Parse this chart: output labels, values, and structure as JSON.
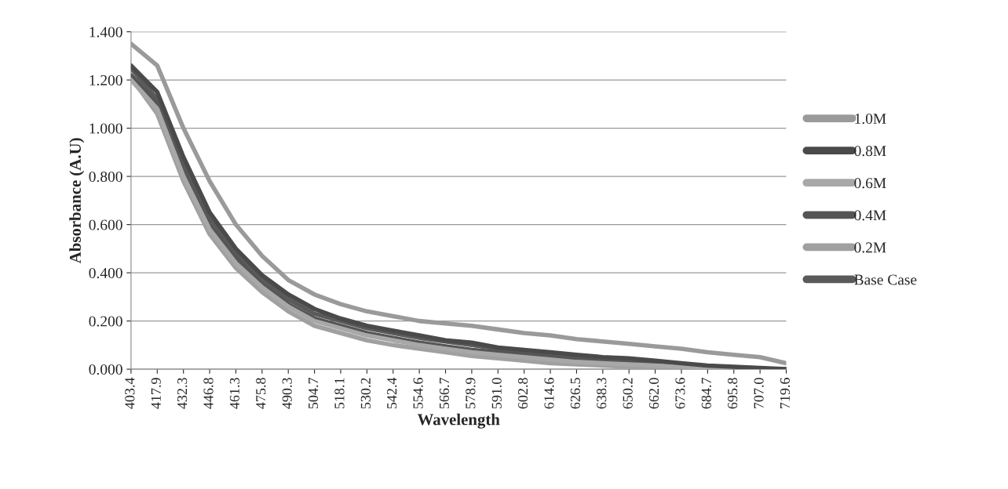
{
  "chart_data": {
    "type": "line",
    "xlabel": "Wavelength",
    "ylabel": "Absorbance (A.U)",
    "categories": [
      "403.4",
      "417.9",
      "432.3",
      "446.8",
      "461.3",
      "475.8",
      "490.3",
      "504.7",
      "518.1",
      "530.2",
      "542.4",
      "554.6",
      "566.7",
      "578.9",
      "591.0",
      "602.8",
      "614.6",
      "626.5",
      "638.3",
      "650.2",
      "662.0",
      "673.6",
      "684.7",
      "695.8",
      "707.0",
      "719.6"
    ],
    "series": [
      {
        "name": "1.0M",
        "color": "#9a9a9a",
        "values": [
          1.35,
          1.26,
          1.0,
          0.78,
          0.6,
          0.47,
          0.37,
          0.31,
          0.27,
          0.24,
          0.22,
          0.2,
          0.19,
          0.18,
          0.165,
          0.15,
          0.14,
          0.125,
          0.115,
          0.105,
          0.095,
          0.085,
          0.07,
          0.06,
          0.05,
          0.025
        ]
      },
      {
        "name": "0.8M",
        "color": "#4a4a4a",
        "values": [
          1.26,
          1.15,
          0.88,
          0.65,
          0.5,
          0.39,
          0.31,
          0.25,
          0.21,
          0.18,
          0.16,
          0.14,
          0.12,
          0.11,
          0.09,
          0.08,
          0.07,
          0.06,
          0.05,
          0.045,
          0.035,
          0.025,
          0.015,
          0.01,
          0.005,
          0.0
        ]
      },
      {
        "name": "0.6M",
        "color": "#a8a8a8",
        "values": [
          1.2,
          1.08,
          0.8,
          0.58,
          0.44,
          0.34,
          0.26,
          0.2,
          0.17,
          0.14,
          0.12,
          0.1,
          0.085,
          0.07,
          0.06,
          0.05,
          0.04,
          0.03,
          0.025,
          0.02,
          0.015,
          0.01,
          0.005,
          0.0,
          0.0,
          0.0
        ]
      },
      {
        "name": "0.4M",
        "color": "#555555",
        "values": [
          1.22,
          1.1,
          0.82,
          0.6,
          0.46,
          0.35,
          0.27,
          0.21,
          0.18,
          0.15,
          0.13,
          0.11,
          0.095,
          0.08,
          0.07,
          0.06,
          0.05,
          0.04,
          0.03,
          0.025,
          0.02,
          0.012,
          0.006,
          0.003,
          0.0,
          0.0
        ]
      },
      {
        "name": "0.2M",
        "color": "#a0a0a0",
        "values": [
          1.21,
          1.06,
          0.78,
          0.56,
          0.42,
          0.32,
          0.24,
          0.18,
          0.15,
          0.12,
          0.1,
          0.085,
          0.07,
          0.055,
          0.045,
          0.035,
          0.025,
          0.02,
          0.015,
          0.01,
          0.005,
          0.003,
          0.0,
          0.0,
          0.0,
          0.0
        ]
      },
      {
        "name": "Base Case",
        "color": "#5a5a5a",
        "values": [
          1.25,
          1.12,
          0.85,
          0.63,
          0.48,
          0.37,
          0.29,
          0.23,
          0.2,
          0.17,
          0.15,
          0.13,
          0.115,
          0.1,
          0.085,
          0.075,
          0.065,
          0.055,
          0.045,
          0.04,
          0.03,
          0.02,
          0.01,
          0.005,
          0.0,
          0.0
        ]
      }
    ],
    "ylim": [
      0,
      1.4
    ],
    "yticks": [
      {
        "value": 0,
        "label": "0.000"
      },
      {
        "value": 0.2,
        "label": "0.200"
      },
      {
        "value": 0.4,
        "label": "0.400"
      },
      {
        "value": 0.6,
        "label": "0.600"
      },
      {
        "value": 0.8,
        "label": "0.800"
      },
      {
        "value": 1.0,
        "label": "1.000"
      },
      {
        "value": 1.2,
        "label": "1.200"
      },
      {
        "value": 1.4,
        "label": "1.400"
      }
    ],
    "grid": "y",
    "legend": "right",
    "marker": "none",
    "line_style": "solid"
  }
}
